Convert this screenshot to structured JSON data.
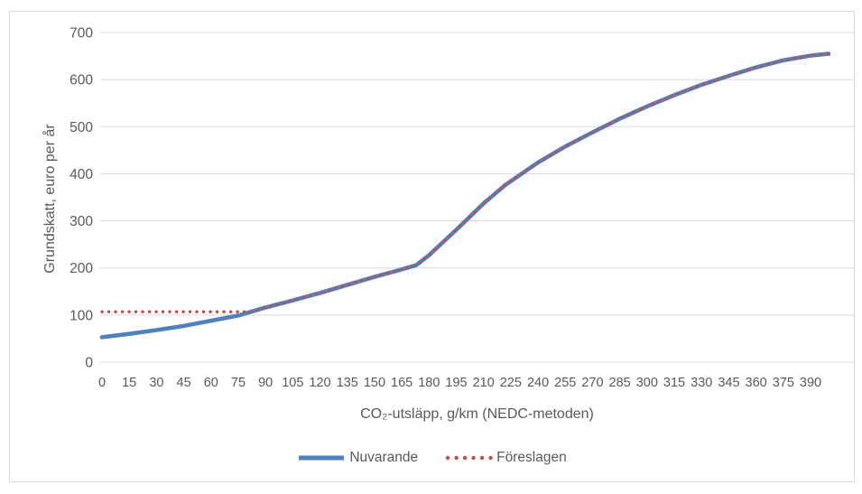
{
  "chart_data": {
    "type": "line",
    "title": "",
    "xlabel": "CO₂-utsläpp, g/km (NEDC-metoden)",
    "ylabel": "Grundskatt, euro per år",
    "xlim": [
      0,
      400
    ],
    "ylim": [
      0,
      700
    ],
    "x_ticks": [
      0,
      15,
      30,
      45,
      60,
      75,
      90,
      105,
      120,
      135,
      150,
      165,
      180,
      195,
      210,
      225,
      240,
      255,
      270,
      285,
      300,
      315,
      330,
      345,
      360,
      375,
      390
    ],
    "y_ticks": [
      0,
      100,
      200,
      300,
      400,
      500,
      600,
      700
    ],
    "grid": "horizontal",
    "legend_position": "bottom-center",
    "x": [
      0,
      15,
      30,
      45,
      60,
      75,
      82,
      90,
      105,
      120,
      135,
      150,
      165,
      173,
      180,
      195,
      210,
      222,
      240,
      255,
      270,
      285,
      300,
      315,
      330,
      345,
      360,
      375,
      390,
      400
    ],
    "series": [
      {
        "name": "Nuvarande",
        "style": "solid",
        "color": "#4F81BD",
        "values": [
          53,
          60,
          68,
          77,
          88,
          99,
          107,
          116,
          131,
          147,
          164,
          181,
          197,
          206,
          227,
          281,
          337,
          376,
          424,
          458,
          488,
          517,
          543,
          567,
          589,
          608,
          626,
          641,
          651,
          655
        ]
      },
      {
        "name": "Föreslagen",
        "style": "dotted",
        "color": "#C0504D",
        "values": [
          107,
          107,
          107,
          107,
          107,
          107,
          107,
          116,
          131,
          147,
          164,
          181,
          197,
          206,
          227,
          281,
          337,
          376,
          424,
          458,
          488,
          517,
          543,
          567,
          589,
          608,
          626,
          641,
          651,
          655
        ]
      }
    ]
  },
  "colors": {
    "gridline": "#d9d9d9",
    "frame_border": "#d9d9d9",
    "tick_text": "#595959",
    "title_text": "#595959",
    "background": "#ffffff"
  }
}
